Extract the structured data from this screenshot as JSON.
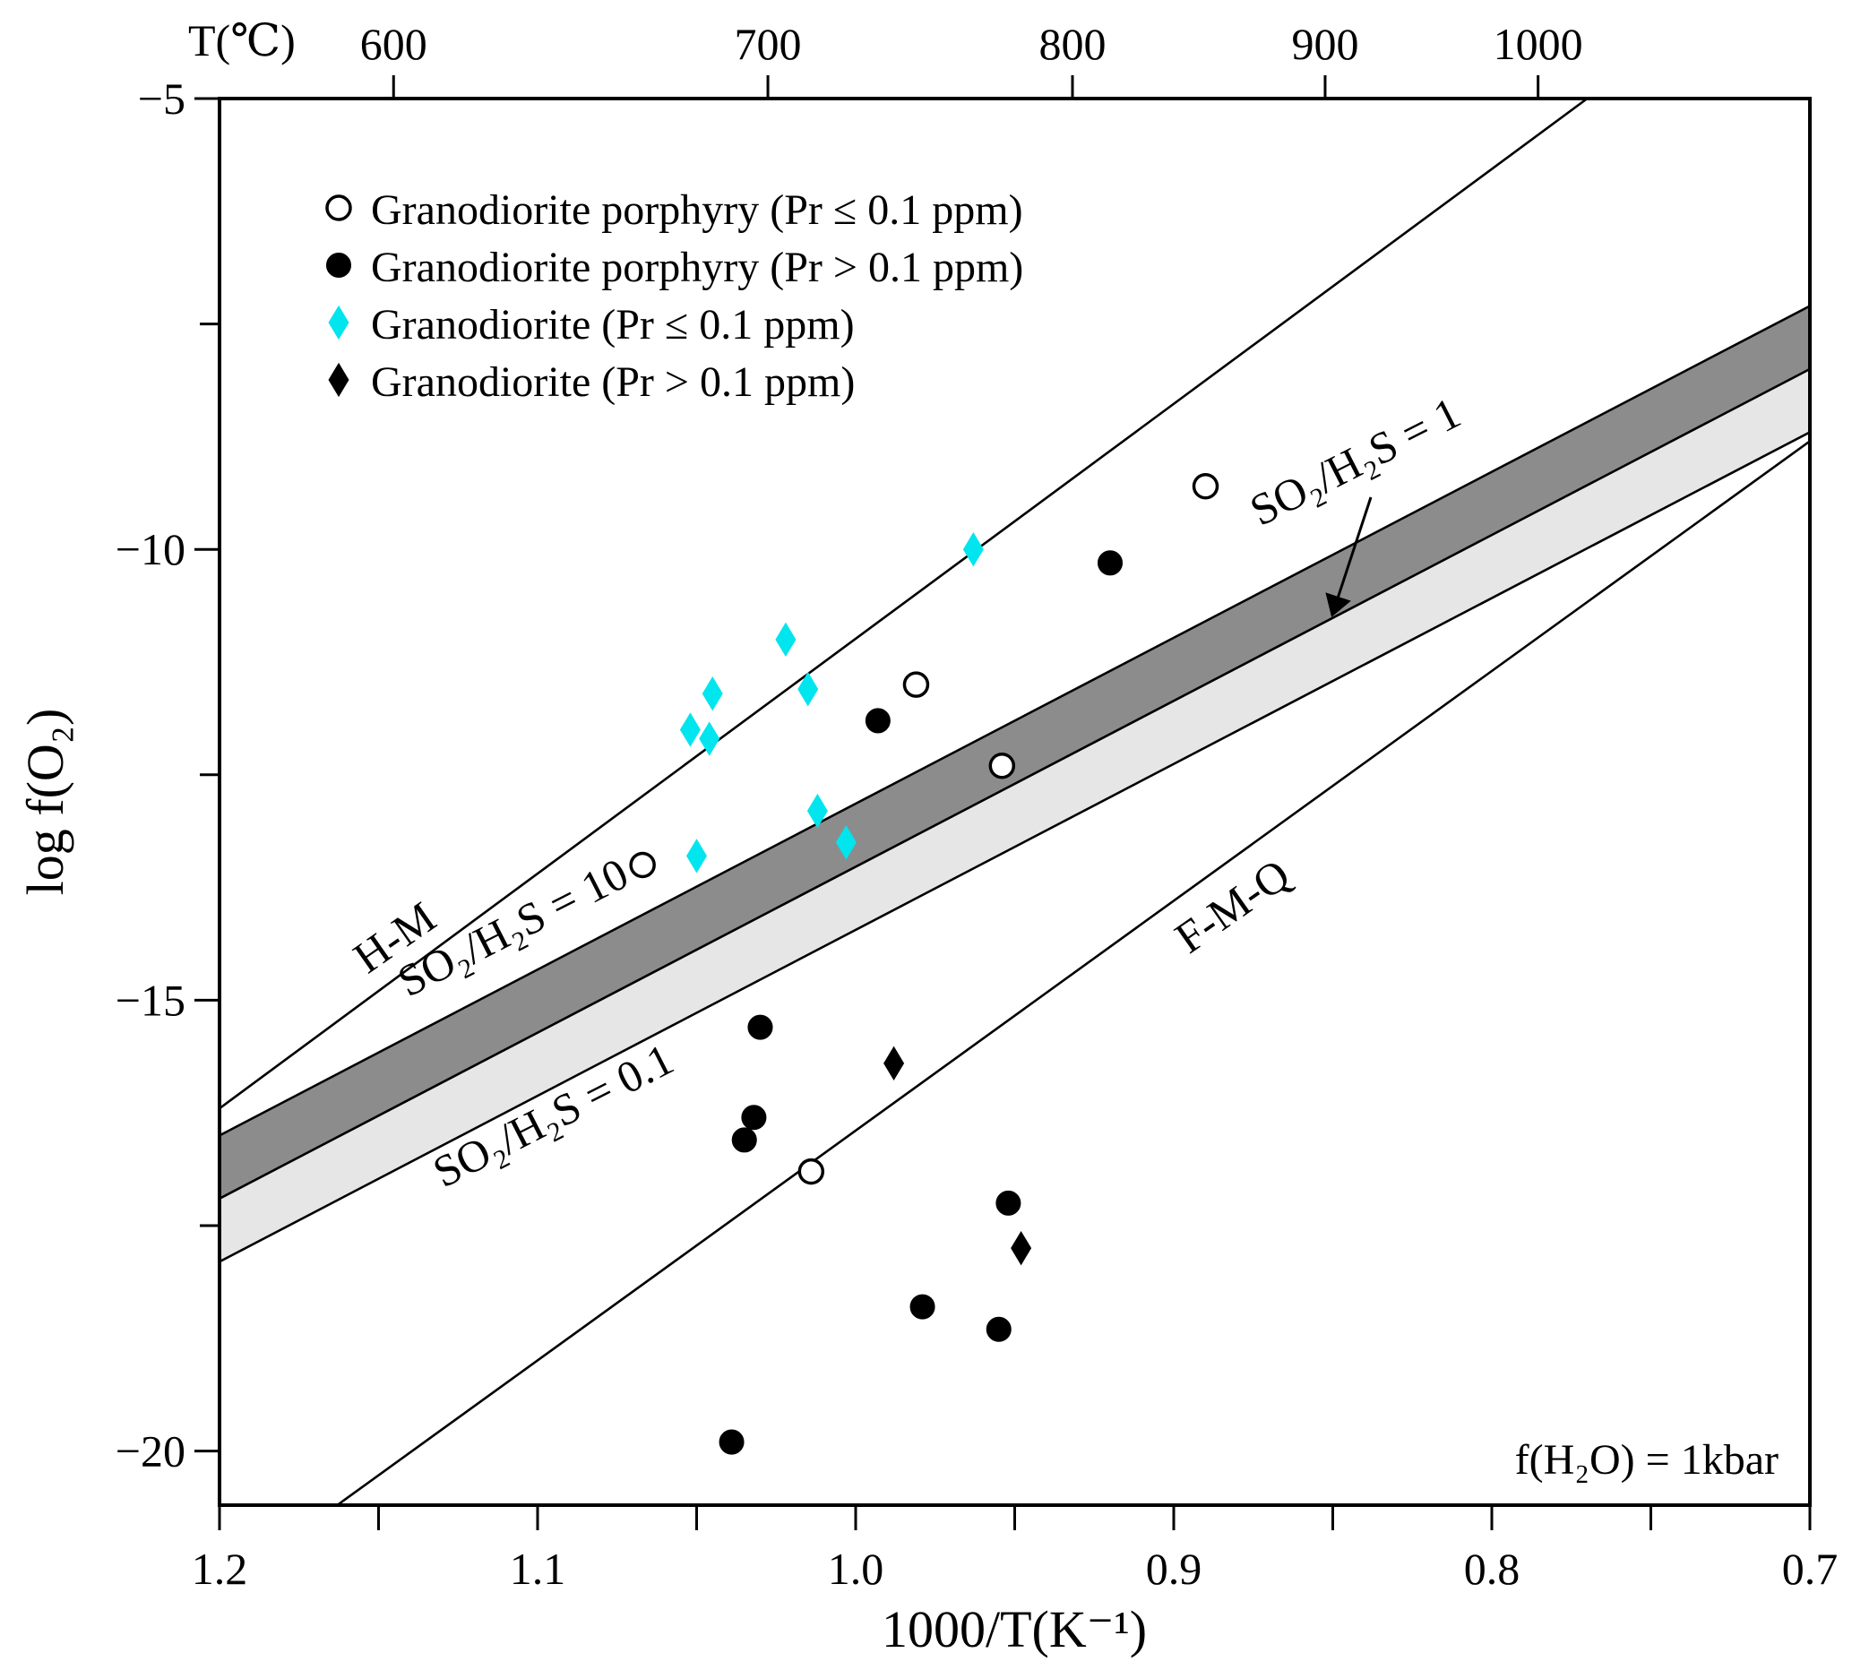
{
  "chart_data": {
    "type": "scatter",
    "xlabel": "1000/T(K⁻¹)",
    "ylabel": "log f(O₂)",
    "top_axis_label": "T(℃)",
    "x_range": [
      1.2,
      0.7
    ],
    "y_range": [
      -20.6,
      -5
    ],
    "x_ticks": [
      {
        "value": 1.2,
        "label": "1.2"
      },
      {
        "value": 1.1,
        "label": "1.1"
      },
      {
        "value": 1.0,
        "label": "1.0"
      },
      {
        "value": 0.9,
        "label": "0.9"
      },
      {
        "value": 0.8,
        "label": "0.8"
      },
      {
        "value": 0.7,
        "label": "0.7"
      }
    ],
    "x_minor_ticks": [
      1.15,
      1.05,
      0.95,
      0.85,
      0.75
    ],
    "y_ticks": [
      {
        "value": -5,
        "label": "−5"
      },
      {
        "value": -10,
        "label": "−10"
      },
      {
        "value": -15,
        "label": "−15"
      },
      {
        "value": -20,
        "label": "−20"
      }
    ],
    "y_minor_ticks": [
      -7.5,
      -12.5,
      -17.5
    ],
    "top_ticks": [
      {
        "celsius": 600,
        "label": "600"
      },
      {
        "celsius": 700,
        "label": "700"
      },
      {
        "celsius": 800,
        "label": "800"
      },
      {
        "celsius": 900,
        "label": "900"
      },
      {
        "celsius": 1000,
        "label": "1000"
      }
    ],
    "reference_lines": [
      {
        "name": "H-M",
        "label": "H-M",
        "from": [
          1.2,
          -16.2
        ],
        "to": [
          0.77,
          -5
        ]
      },
      {
        "name": "F-M-Q",
        "label": "F-M-Q",
        "from": [
          1.163,
          -20.6
        ],
        "to": [
          0.7,
          -8.8
        ]
      }
    ],
    "buffer_lines": [
      {
        "name": "SO2/H2S=10",
        "from": [
          1.2,
          -16.5
        ],
        "to": [
          0.7,
          -7.3
        ]
      },
      {
        "name": "SO2/H2S=1",
        "from": [
          1.2,
          -17.2
        ],
        "to": [
          0.7,
          -8.0
        ]
      },
      {
        "name": "SO2/H2S=0.1",
        "from": [
          1.2,
          -17.9
        ],
        "to": [
          0.7,
          -8.7
        ]
      }
    ],
    "bands": [
      {
        "name": "dark-band",
        "color": "#8c8c8c",
        "between": [
          "SO2/H2S=10",
          "SO2/H2S=1"
        ]
      },
      {
        "name": "light-band",
        "color": "#e6e6e6",
        "between": [
          "SO2/H2S=1",
          "SO2/H2S=0.1"
        ]
      }
    ],
    "labels": {
      "hm": "H-M",
      "fmq": "F-M-Q",
      "so2_10": "SO₂/H₂S = 10",
      "so2_1": "SO₂/H₂S = 1",
      "so2_01": "SO₂/H₂S = 0.1",
      "fh2o": "f(H₂O) = 1kbar"
    },
    "series": [
      {
        "name": "Granodiorite porphyry (Pr ≤ 0.1 ppm)",
        "marker": "circle-open",
        "color": "#000000",
        "points": [
          [
            0.89,
            -9.3
          ],
          [
            0.981,
            -11.5
          ],
          [
            0.954,
            -12.4
          ],
          [
            1.067,
            -13.5
          ],
          [
            1.014,
            -16.9
          ]
        ]
      },
      {
        "name": "Granodiorite porphyry (Pr > 0.1 ppm)",
        "marker": "circle-filled",
        "color": "#000000",
        "points": [
          [
            0.92,
            -10.15
          ],
          [
            0.993,
            -11.9
          ],
          [
            1.03,
            -15.3
          ],
          [
            1.032,
            -16.3
          ],
          [
            1.035,
            -16.55
          ],
          [
            0.952,
            -17.25
          ],
          [
            0.979,
            -18.4
          ],
          [
            0.955,
            -18.65
          ],
          [
            1.039,
            -19.9
          ]
        ]
      },
      {
        "name": "Granodiorite (Pr ≤ 0.1 ppm)",
        "marker": "diamond",
        "color": "#00e5ee",
        "points": [
          [
            0.963,
            -10.0
          ],
          [
            1.022,
            -11.0
          ],
          [
            1.045,
            -11.6
          ],
          [
            1.015,
            -11.55
          ],
          [
            1.052,
            -12.0
          ],
          [
            1.046,
            -12.1
          ],
          [
            1.012,
            -12.9
          ],
          [
            1.05,
            -13.4
          ],
          [
            1.003,
            -13.25
          ]
        ]
      },
      {
        "name": "Granodiorite (Pr > 0.1 ppm)",
        "marker": "diamond",
        "color": "#000000",
        "points": [
          [
            0.988,
            -15.7
          ],
          [
            0.948,
            -17.75
          ]
        ]
      }
    ],
    "legend_position": "top-left"
  }
}
